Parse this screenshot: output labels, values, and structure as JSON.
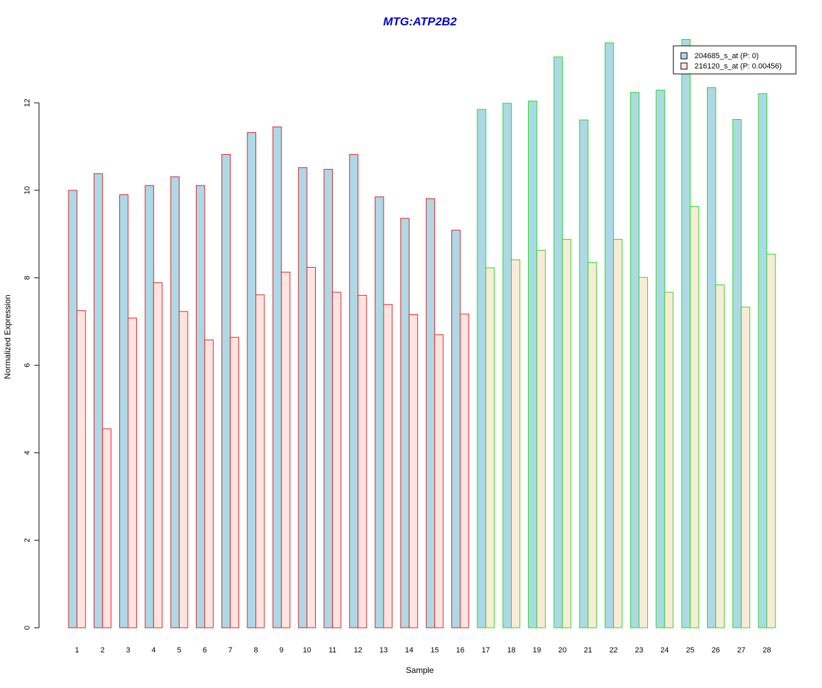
{
  "chart_data": {
    "type": "bar",
    "title": "MTG:ATP2B2",
    "xlabel": "Sample",
    "ylabel": "Normalized Expression",
    "ylim": [
      0,
      13.5
    ],
    "yticks": [
      0,
      2,
      4,
      6,
      8,
      10,
      12
    ],
    "categories": [
      "1",
      "2",
      "3",
      "4",
      "5",
      "6",
      "7",
      "8",
      "9",
      "10",
      "11",
      "12",
      "13",
      "14",
      "15",
      "16",
      "17",
      "18",
      "19",
      "20",
      "21",
      "22",
      "23",
      "24",
      "25",
      "26",
      "27",
      "28"
    ],
    "groups": [
      {
        "samples": [
          1,
          16
        ],
        "border_color": "#dd2222"
      },
      {
        "samples": [
          17,
          28
        ],
        "border_color": "#22dd22"
      }
    ],
    "series": [
      {
        "name": "204685_s_at (P: 0)",
        "fill": "#add8e6",
        "values": [
          10.0,
          10.38,
          9.9,
          10.11,
          10.31,
          10.11,
          10.82,
          11.32,
          11.45,
          10.52,
          10.48,
          10.82,
          9.85,
          9.36,
          9.81,
          9.09,
          11.85,
          11.99,
          12.04,
          13.05,
          11.61,
          13.37,
          12.24,
          12.29,
          13.45,
          12.35,
          11.62,
          12.21
        ]
      },
      {
        "name": "216120_s_at (P: 0.00456)",
        "fill": "#ffe4e1",
        "fill_alt": "#faebd7",
        "values": [
          7.25,
          4.55,
          7.08,
          7.89,
          7.23,
          6.58,
          6.64,
          7.61,
          8.13,
          8.24,
          7.67,
          7.6,
          7.39,
          7.16,
          6.7,
          7.17,
          8.23,
          8.41,
          8.63,
          8.88,
          8.35,
          8.88,
          8.01,
          7.67,
          9.63,
          7.84,
          7.33,
          8.54
        ]
      }
    ],
    "legend": "top-right",
    "grid": false
  }
}
